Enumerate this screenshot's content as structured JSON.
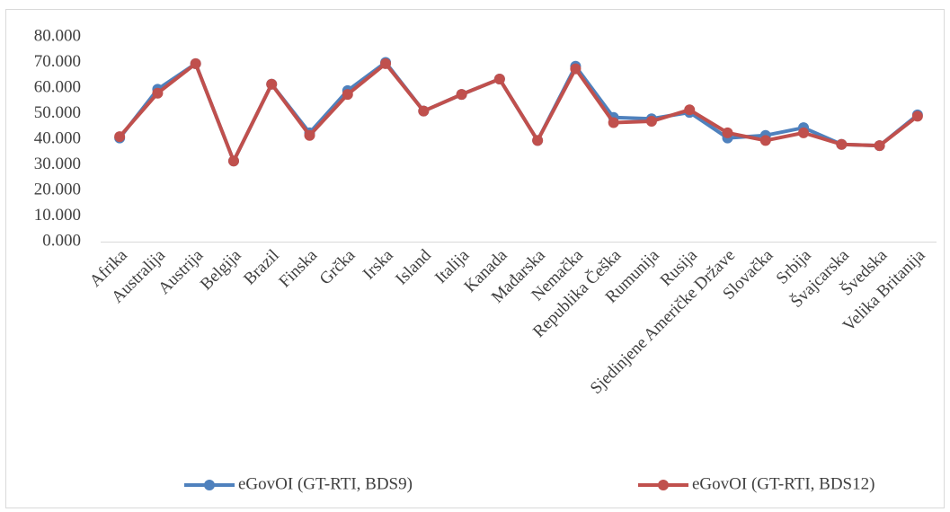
{
  "chart_data": {
    "type": "line",
    "categories": [
      "Afrika",
      "Australija",
      "Austrija",
      "Belgija",
      "Brazil",
      "Finska",
      "Grčka",
      "Irska",
      "Island",
      "Italija",
      "Kanada",
      "Mađarska",
      "Nemačka",
      "Republika Češka",
      "Rumunija",
      "Rusija",
      "Sjedinjene Američke Države",
      "Slovačka",
      "Srbija",
      "Švajcarska",
      "Švedska",
      "Velika Britanija"
    ],
    "series": [
      {
        "name": "eGovOI (GT-RTI, BDS9)",
        "color": "#4f81bd",
        "values": [
          40.5,
          59.5,
          69.5,
          31.5,
          61.5,
          42.5,
          59,
          70,
          51,
          57.5,
          63.5,
          39.5,
          68.5,
          48.5,
          48,
          50.5,
          40.5,
          41.5,
          44.5,
          38,
          37.5,
          49.5
        ]
      },
      {
        "name": "eGovOI (GT-RTI, BDS12)",
        "color": "#c0504d",
        "values": [
          41,
          58,
          69.5,
          31.5,
          61.5,
          41.5,
          57.5,
          69.5,
          51,
          57.5,
          63.5,
          39.5,
          67.5,
          46.5,
          47,
          51.5,
          42.5,
          39.5,
          42.5,
          38,
          37.5,
          49
        ]
      }
    ],
    "ylim": [
      0,
      80
    ],
    "yticks": [
      {
        "value": 0,
        "label": "0.000"
      },
      {
        "value": 10,
        "label": "10.000"
      },
      {
        "value": 20,
        "label": "20.000"
      },
      {
        "value": 30,
        "label": "30.000"
      },
      {
        "value": 40,
        "label": "40.000"
      },
      {
        "value": 50,
        "label": "50.000"
      },
      {
        "value": 60,
        "label": "60.000"
      },
      {
        "value": 70,
        "label": "70.000"
      },
      {
        "value": 80,
        "label": "80.000"
      }
    ],
    "grid": false,
    "legend": "bottom"
  }
}
